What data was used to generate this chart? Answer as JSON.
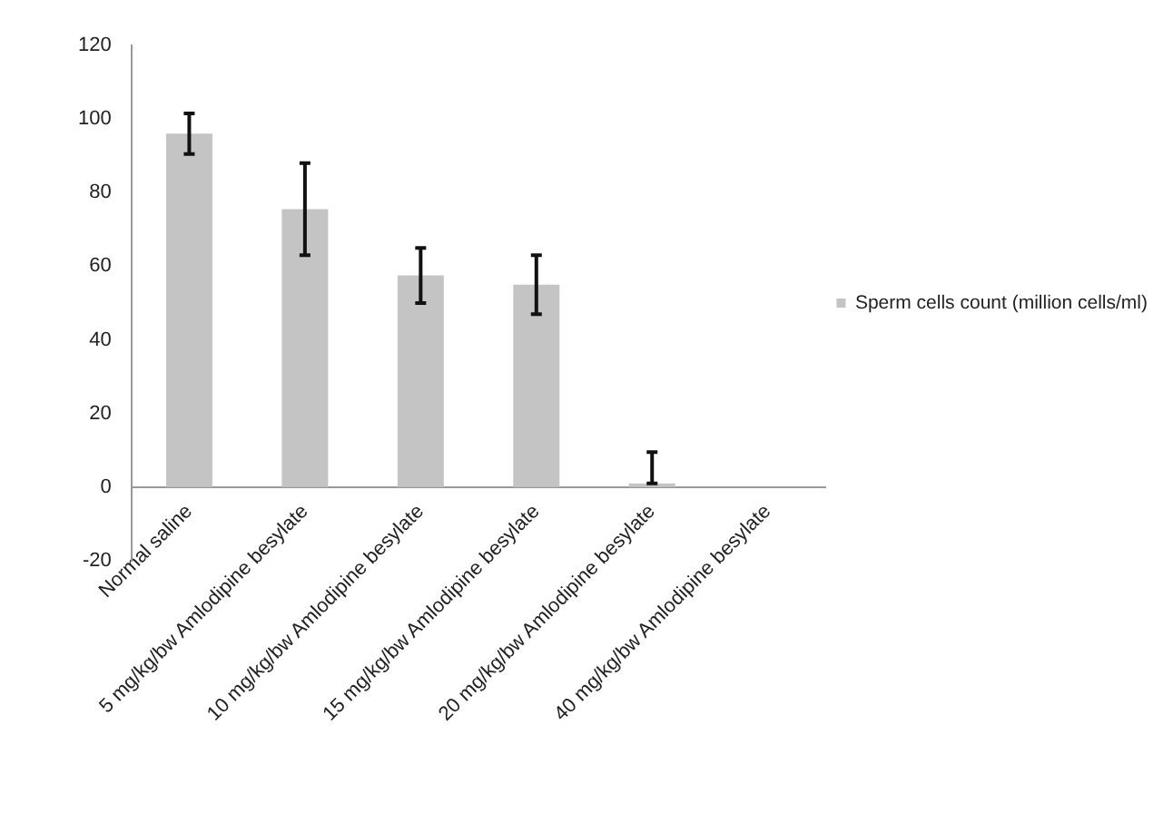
{
  "chart_data": {
    "type": "bar",
    "categories": [
      "Normal saline",
      "5 mg/kg/bw Amlodipine besylate",
      "10 mg/kg/bw Amlodipine besylate",
      "15 mg/kg/bw Amlodipine besylate",
      "20 mg/kg/bw Amlodipine besylate",
      "40 mg/kg/bw Amlodipine besylate"
    ],
    "series": [
      {
        "name": "Sperm cells count (million cells/ml)",
        "color": "#c4c4c4",
        "values": [
          96,
          75.5,
          57.5,
          55,
          1,
          0
        ],
        "errors": [
          5.5,
          12.5,
          7.5,
          8,
          [
            1,
            9.5
          ],
          null
        ]
      }
    ],
    "ylim": [
      -20,
      120
    ],
    "yticks": [
      -20,
      0,
      20,
      40,
      60,
      80,
      100,
      120
    ],
    "grid": false,
    "legend": "right"
  }
}
